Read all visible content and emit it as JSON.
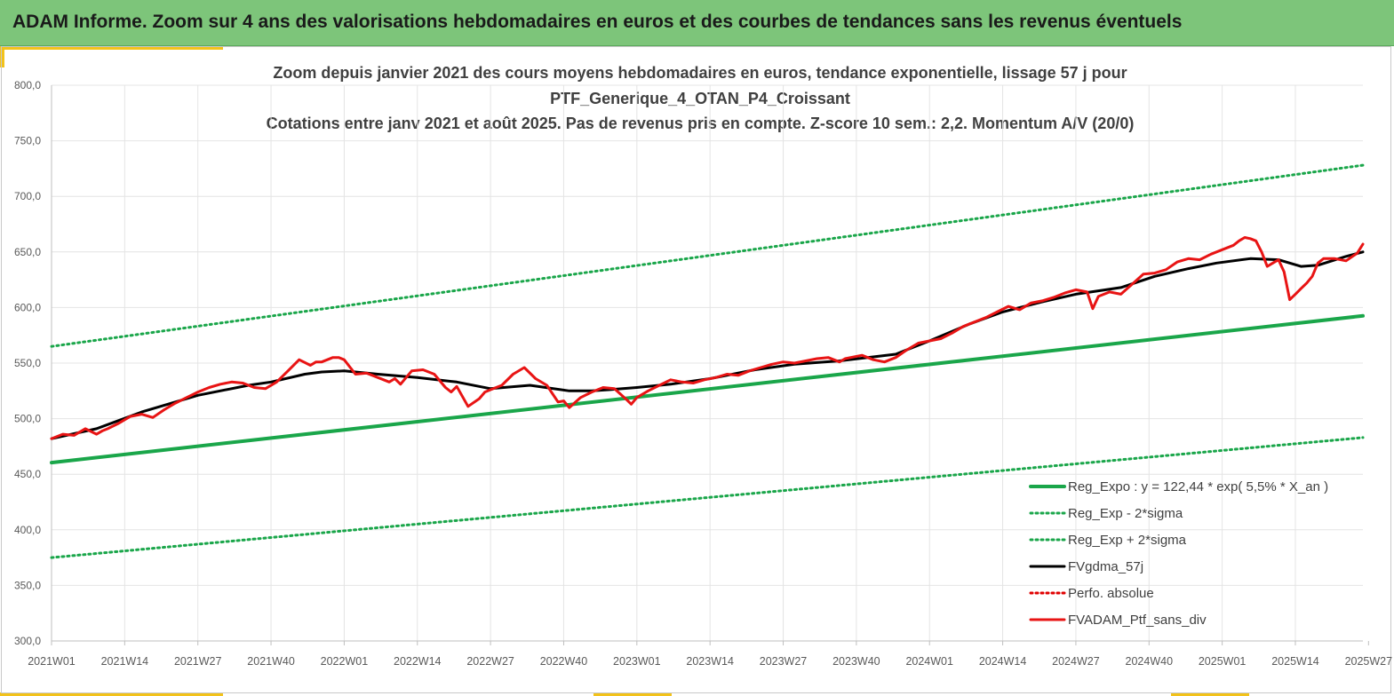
{
  "banner": {
    "title": "ADAM Informe. Zoom sur 4 ans des valorisations hebdomadaires en euros et des courbes de tendances sans les revenus éventuels"
  },
  "colors": {
    "banner_bg": "#7dc57a",
    "accent_yellow": "#f2c21a",
    "regression": "#1aa64a",
    "sigma_bands": "#1aa64a",
    "moving_average": "#000000",
    "perf_absolue": "#e00000",
    "portfolio": "#e81414",
    "gridlines": "#e4e4e4"
  },
  "chart_data": {
    "type": "line",
    "title_lines": [
      "Zoom depuis janvier 2021 des cours moyens hebdomadaires  en euros, tendance exponentielle, lissage 57 j pour",
      "PTF_Generique_4_OTAN_P4_Croissant",
      "Cotations  entre janv 2021 et août 2025. Pas de revenus pris en compte. Z-score 10 sem.: 2,2. Momentum A/V (20/0)"
    ],
    "xlabel": "",
    "ylabel": "",
    "ylim": [
      300,
      800
    ],
    "y_ticks": [
      300,
      350,
      400,
      450,
      500,
      550,
      600,
      650,
      700,
      750,
      800
    ],
    "y_tick_labels": [
      "300,0",
      "350,0",
      "400,0",
      "450,0",
      "500,0",
      "550,0",
      "600,0",
      "650,0",
      "700,0",
      "750,0",
      "800,0"
    ],
    "x_range_weeks": [
      0,
      233
    ],
    "x_tick_labels": [
      "2021W01",
      "2021W14",
      "2021W27",
      "2021W40",
      "2022W01",
      "2022W14",
      "2022W27",
      "2022W40",
      "2023W01",
      "2023W14",
      "2023W27",
      "2023W40",
      "2024W01",
      "2024W14",
      "2024W27",
      "2024W40",
      "2025W01",
      "2025W14",
      "2025W27"
    ],
    "x_tick_weeks": [
      0,
      13,
      26,
      39,
      52,
      65,
      78,
      91,
      104,
      117,
      130,
      143,
      156,
      169,
      182,
      195,
      208,
      221,
      234
    ],
    "grid": true,
    "legend_position": "bottom-right",
    "series": [
      {
        "name": "Reg_Expo : y = 122,44 * exp( 5,5% *  X_an )",
        "style": "solid",
        "x": [
          0,
          233
        ],
        "values": [
          460.5,
          592.5
        ]
      },
      {
        "name": "Reg_Exp - 2*sigma",
        "style": "dotted",
        "x": [
          0,
          233
        ],
        "values": [
          375,
          483
        ]
      },
      {
        "name": "Reg_Exp + 2*sigma",
        "style": "dotted",
        "x": [
          0,
          233
        ],
        "values": [
          565,
          728
        ]
      },
      {
        "name": "FVgdma_57j",
        "style": "solid",
        "x": [
          0,
          8,
          16,
          26,
          35,
          39,
          45,
          48,
          52,
          58,
          65,
          72,
          78,
          85,
          92,
          96,
          99,
          104,
          110,
          117,
          125,
          132,
          140,
          145,
          150,
          156,
          163,
          169,
          176,
          182,
          190,
          196,
          202,
          207,
          213,
          218,
          222,
          225,
          230,
          233
        ],
        "values": [
          482,
          491,
          506,
          521,
          530,
          533,
          540,
          542,
          543,
          540,
          537,
          533,
          527,
          530,
          525,
          525,
          526,
          528,
          531,
          536,
          544,
          549,
          552,
          555,
          558,
          570,
          585,
          596,
          605,
          612,
          618,
          628,
          635,
          640,
          644,
          643,
          637,
          638,
          646,
          650
        ]
      },
      {
        "name": "Perfo. absolue",
        "style": "dotted",
        "x": [],
        "values": []
      },
      {
        "name": "FVADAM_Ptf_sans_div",
        "style": "solid",
        "x": [
          0,
          2,
          4,
          6,
          8,
          9,
          10,
          12,
          14,
          16,
          18,
          20,
          21,
          22,
          24,
          26,
          28,
          30,
          32,
          34,
          36,
          38,
          40,
          42,
          44,
          46,
          47,
          48,
          50,
          51,
          52,
          54,
          56,
          58,
          60,
          61,
          62,
          64,
          66,
          68,
          70,
          71,
          72,
          74,
          76,
          77,
          78,
          80,
          82,
          84,
          86,
          88,
          90,
          91,
          92,
          94,
          96,
          98,
          100,
          102,
          103,
          104,
          106,
          108,
          110,
          112,
          114,
          116,
          118,
          120,
          122,
          124,
          126,
          128,
          130,
          132,
          134,
          136,
          138,
          140,
          141,
          142,
          144,
          146,
          148,
          150,
          152,
          154,
          156,
          158,
          160,
          162,
          164,
          166,
          168,
          170,
          172,
          174,
          176,
          178,
          180,
          182,
          184,
          185,
          186,
          188,
          190,
          192,
          194,
          196,
          198,
          200,
          202,
          204,
          206,
          208,
          210,
          211,
          212,
          213,
          214,
          215,
          216,
          217,
          218,
          219,
          220,
          221,
          222,
          223,
          224,
          225,
          226,
          228,
          230,
          232,
          233
        ],
        "values": [
          482,
          486,
          485,
          491,
          486,
          489,
          491,
          496,
          502,
          504,
          501,
          508,
          511,
          514,
          519,
          524,
          528,
          531,
          533,
          532,
          528,
          527,
          533,
          543,
          553,
          548,
          551,
          551,
          555,
          555,
          553,
          540,
          541,
          537,
          533,
          536,
          531,
          543,
          544,
          540,
          528,
          524,
          529,
          511,
          518,
          524,
          526,
          530,
          540,
          546,
          536,
          530,
          515,
          516,
          510,
          519,
          524,
          528,
          527,
          518,
          513,
          519,
          525,
          530,
          535,
          533,
          532,
          535,
          537,
          540,
          539,
          543,
          546,
          549,
          551,
          550,
          552,
          554,
          555,
          551,
          554,
          555,
          557,
          553,
          551,
          555,
          562,
          568,
          570,
          572,
          577,
          583,
          587,
          591,
          596,
          601,
          598,
          604,
          606,
          609,
          613,
          616,
          614,
          599,
          610,
          614,
          612,
          621,
          630,
          631,
          634,
          641,
          644,
          643,
          648,
          652,
          656,
          660,
          663,
          662,
          660,
          650,
          637,
          640,
          643,
          632,
          607,
          612,
          617,
          622,
          628,
          640,
          644,
          644,
          642,
          649,
          657
        ]
      }
    ]
  }
}
